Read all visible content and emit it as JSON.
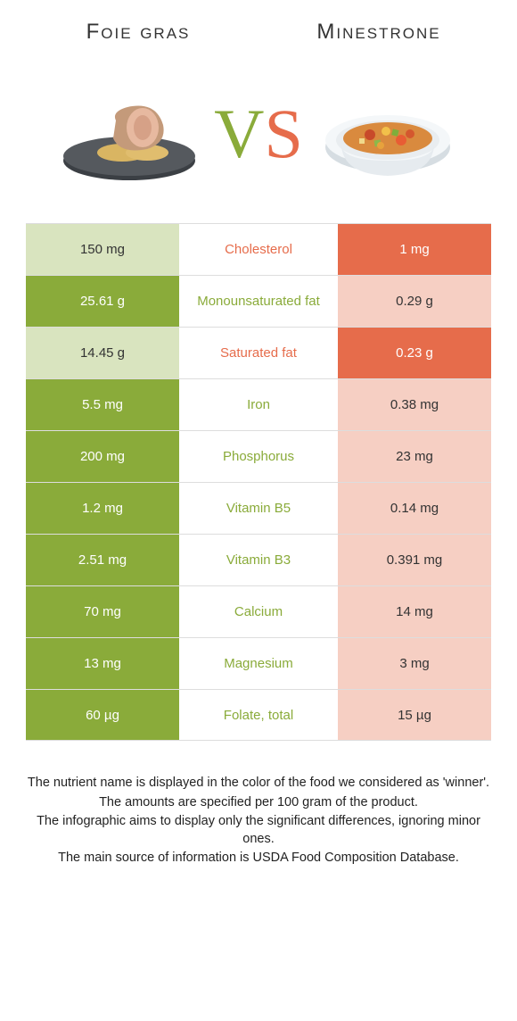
{
  "header": {
    "left_title": "Foie gras",
    "right_title": "Minestrone"
  },
  "vs": {
    "v": "V",
    "s": "S"
  },
  "colors": {
    "green": "#8aab3a",
    "orange": "#e66c4b",
    "light_green": "#d9e4bf",
    "light_orange": "#f6cfc3",
    "border": "#dddddd",
    "text": "#333333",
    "bg": "#ffffff"
  },
  "rows": [
    {
      "left": "150 mg",
      "mid": "Cholesterol",
      "right": "1 mg",
      "winner": "right"
    },
    {
      "left": "25.61 g",
      "mid": "Monounsaturated fat",
      "right": "0.29 g",
      "winner": "left"
    },
    {
      "left": "14.45 g",
      "mid": "Saturated fat",
      "right": "0.23 g",
      "winner": "right"
    },
    {
      "left": "5.5 mg",
      "mid": "Iron",
      "right": "0.38 mg",
      "winner": "left"
    },
    {
      "left": "200 mg",
      "mid": "Phosphorus",
      "right": "23 mg",
      "winner": "left"
    },
    {
      "left": "1.2 mg",
      "mid": "Vitamin B5",
      "right": "0.14 mg",
      "winner": "left"
    },
    {
      "left": "2.51 mg",
      "mid": "Vitamin B3",
      "right": "0.391 mg",
      "winner": "left"
    },
    {
      "left": "70 mg",
      "mid": "Calcium",
      "right": "14 mg",
      "winner": "left"
    },
    {
      "left": "13 mg",
      "mid": "Magnesium",
      "right": "3 mg",
      "winner": "left"
    },
    {
      "left": "60 µg",
      "mid": "Folate, total",
      "right": "15 µg",
      "winner": "left"
    }
  ],
  "footer": {
    "l1": "The nutrient name is displayed in the color of the food we considered as 'winner'.",
    "l2": "The amounts are specified per 100 gram of the product.",
    "l3": "The infographic aims to display only the significant differences, ignoring minor ones.",
    "l4": "The main source of information is USDA Food Composition Database."
  }
}
